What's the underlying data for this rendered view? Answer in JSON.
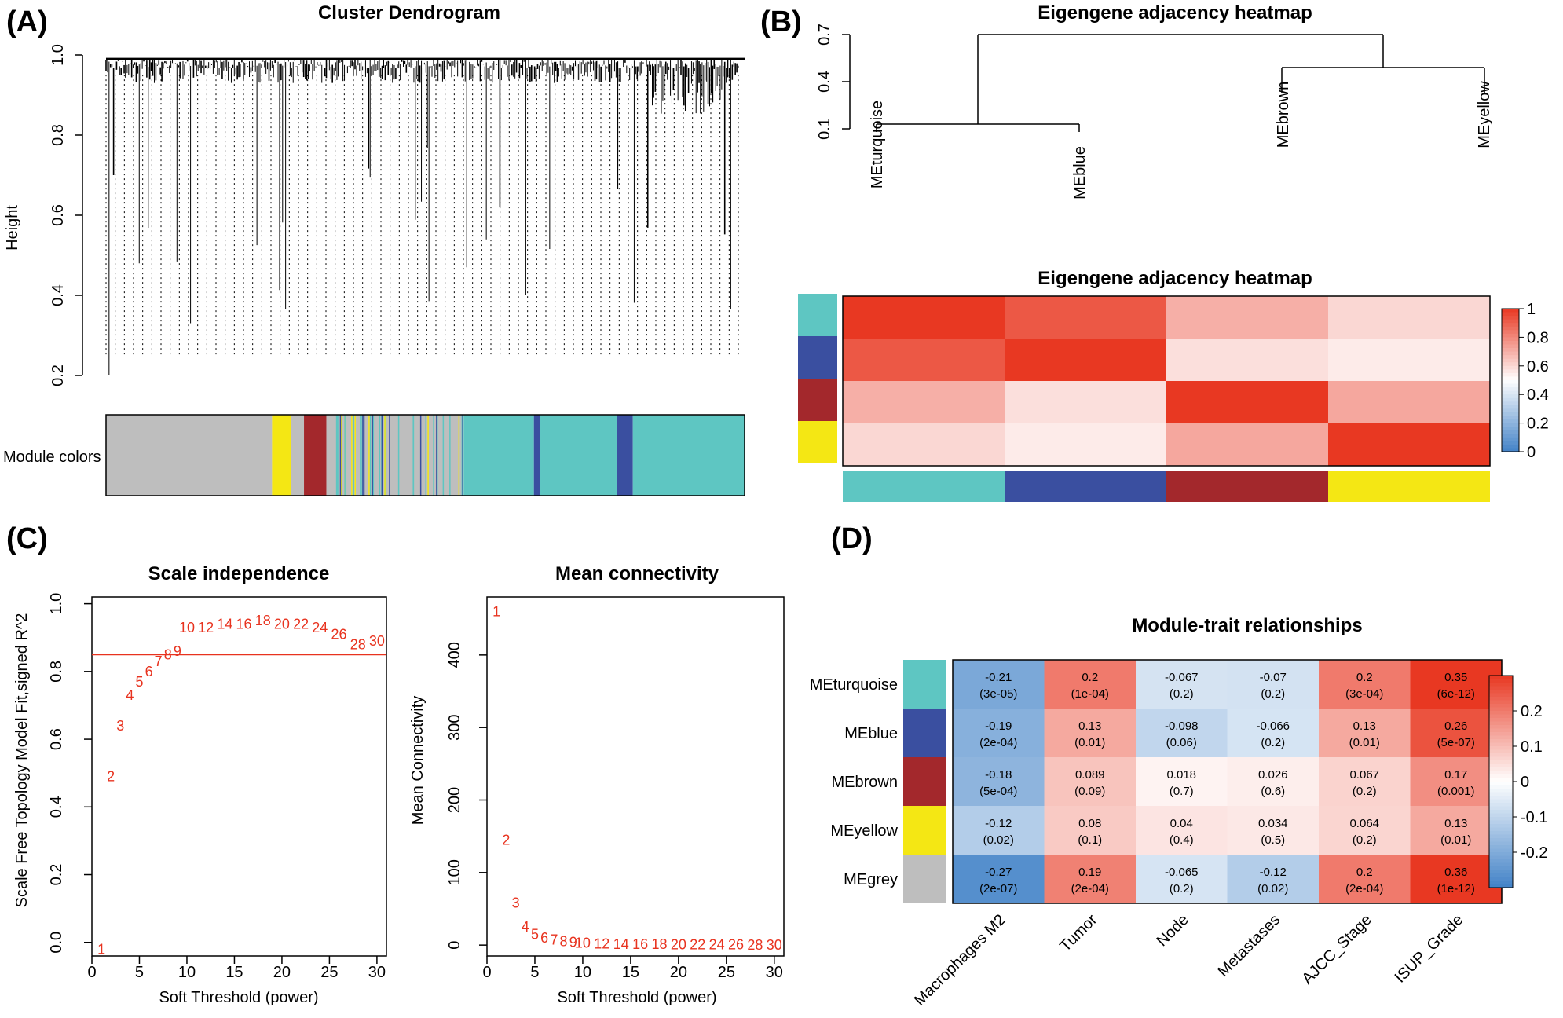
{
  "panels": {
    "a": "(A)",
    "b": "(B)",
    "c": "(C)",
    "d": "(D)"
  },
  "colors": {
    "turquoise": "#5ec6c2",
    "blue": "#3a4fa0",
    "brown": "#a3282c",
    "yellow": "#f4e714",
    "grey": "#bebebe",
    "red_line": "#e8331f",
    "point_text": "#e8331f"
  },
  "chart_data": [
    {
      "id": "A",
      "type": "dendrogram",
      "title": "Cluster Dendrogram",
      "ylabel": "Height",
      "ylim": [
        0.2,
        1.0
      ],
      "yticks": [
        "0.2",
        "0.4",
        "0.6",
        "0.8",
        "1.0"
      ],
      "module_colors_label": "Module colors",
      "module_color_order": [
        "grey",
        "yellow",
        "grey",
        "brown",
        "grey",
        "turquoise",
        "blue",
        "turquoise",
        "blue",
        "turquoise"
      ]
    },
    {
      "id": "B1",
      "type": "dendrogram",
      "title": "Eigengene adjacency heatmap",
      "ylim": [
        0.1,
        0.7
      ],
      "yticks": [
        "0.1",
        "0.4",
        "0.7"
      ],
      "leaves": [
        "MEturquoise",
        "MEblue",
        "MEbrown",
        "MEyellow"
      ]
    },
    {
      "id": "B2",
      "type": "heatmap",
      "title": "Eigengene adjacency heatmap",
      "rows": [
        "MEturquoise",
        "MEblue",
        "MEbrown",
        "MEyellow"
      ],
      "cols": [
        "MEturquoise",
        "MEblue",
        "MEbrown",
        "MEyellow"
      ],
      "row_colors": [
        "turquoise",
        "blue",
        "brown",
        "yellow"
      ],
      "values": [
        [
          1.0,
          0.92,
          0.7,
          0.6
        ],
        [
          0.92,
          1.0,
          0.58,
          0.55
        ],
        [
          0.7,
          0.58,
          1.0,
          0.72
        ],
        [
          0.6,
          0.55,
          0.72,
          1.0
        ]
      ],
      "scale_range": [
        0,
        1
      ],
      "scale_ticks": [
        "1",
        "0.8",
        "0.6",
        "0.4",
        "0.2",
        "0"
      ]
    },
    {
      "id": "C1",
      "type": "scatter",
      "title": "Scale independence",
      "xlabel": "Soft Threshold (power)",
      "ylabel": "Scale Free Topology Model Fit,signed R^2",
      "xlim": [
        0,
        31
      ],
      "ylim": [
        -0.04,
        1.02
      ],
      "xticks": [
        "0",
        "5",
        "10",
        "15",
        "20",
        "25",
        "30"
      ],
      "yticks": [
        "0.0",
        "0.2",
        "0.4",
        "0.6",
        "0.8",
        "1.0"
      ],
      "hline": 0.85,
      "points": [
        {
          "x": 1,
          "y": -0.02,
          "label": "1"
        },
        {
          "x": 2,
          "y": 0.49,
          "label": "2"
        },
        {
          "x": 3,
          "y": 0.64,
          "label": "3"
        },
        {
          "x": 4,
          "y": 0.73,
          "label": "4"
        },
        {
          "x": 5,
          "y": 0.77,
          "label": "5"
        },
        {
          "x": 6,
          "y": 0.8,
          "label": "6"
        },
        {
          "x": 7,
          "y": 0.83,
          "label": "7"
        },
        {
          "x": 8,
          "y": 0.85,
          "label": "8"
        },
        {
          "x": 9,
          "y": 0.86,
          "label": "9"
        },
        {
          "x": 10,
          "y": 0.93,
          "label": "10"
        },
        {
          "x": 12,
          "y": 0.93,
          "label": "12"
        },
        {
          "x": 14,
          "y": 0.94,
          "label": "14"
        },
        {
          "x": 16,
          "y": 0.94,
          "label": "16"
        },
        {
          "x": 18,
          "y": 0.95,
          "label": "18"
        },
        {
          "x": 20,
          "y": 0.94,
          "label": "20"
        },
        {
          "x": 22,
          "y": 0.94,
          "label": "22"
        },
        {
          "x": 24,
          "y": 0.93,
          "label": "24"
        },
        {
          "x": 26,
          "y": 0.91,
          "label": "26"
        },
        {
          "x": 28,
          "y": 0.88,
          "label": "28"
        },
        {
          "x": 30,
          "y": 0.89,
          "label": "30"
        }
      ]
    },
    {
      "id": "C2",
      "type": "scatter",
      "title": "Mean connectivity",
      "xlabel": "Soft Threshold (power)",
      "ylabel": "Mean Connectivity",
      "xlim": [
        0,
        31
      ],
      "ylim": [
        -15,
        480
      ],
      "xticks": [
        "0",
        "5",
        "10",
        "15",
        "20",
        "25",
        "30"
      ],
      "yticks": [
        "0",
        "100",
        "200",
        "300",
        "400"
      ],
      "points": [
        {
          "x": 1,
          "y": 460,
          "label": "1"
        },
        {
          "x": 2,
          "y": 145,
          "label": "2"
        },
        {
          "x": 3,
          "y": 58,
          "label": "3"
        },
        {
          "x": 4,
          "y": 25,
          "label": "4"
        },
        {
          "x": 5,
          "y": 15,
          "label": "5"
        },
        {
          "x": 6,
          "y": 10,
          "label": "6"
        },
        {
          "x": 7,
          "y": 7,
          "label": "7"
        },
        {
          "x": 8,
          "y": 5,
          "label": "8"
        },
        {
          "x": 9,
          "y": 4,
          "label": "9"
        },
        {
          "x": 10,
          "y": 3,
          "label": "10"
        },
        {
          "x": 12,
          "y": 2,
          "label": "12"
        },
        {
          "x": 14,
          "y": 1.5,
          "label": "14"
        },
        {
          "x": 16,
          "y": 1,
          "label": "16"
        },
        {
          "x": 18,
          "y": 1,
          "label": "18"
        },
        {
          "x": 20,
          "y": 0.8,
          "label": "20"
        },
        {
          "x": 22,
          "y": 0.7,
          "label": "22"
        },
        {
          "x": 24,
          "y": 0.6,
          "label": "24"
        },
        {
          "x": 26,
          "y": 0.5,
          "label": "26"
        },
        {
          "x": 28,
          "y": 0.4,
          "label": "28"
        },
        {
          "x": 30,
          "y": 0.3,
          "label": "30"
        }
      ]
    },
    {
      "id": "D",
      "type": "heatmap",
      "title": "Module-trait relationships",
      "rows": [
        "MEturquoise",
        "MEblue",
        "MEbrown",
        "MEyellow",
        "MEgrey"
      ],
      "row_colors": [
        "turquoise",
        "blue",
        "brown",
        "yellow",
        "grey"
      ],
      "cols": [
        "Macrophages M2",
        "Tumor",
        "Node",
        "Metastases",
        "AJCC_Stage",
        "ISUP_Grade"
      ],
      "values": [
        [
          -0.21,
          0.2,
          -0.067,
          -0.07,
          0.2,
          0.35
        ],
        [
          -0.19,
          0.13,
          -0.098,
          -0.066,
          0.13,
          0.26
        ],
        [
          -0.18,
          0.089,
          0.018,
          0.026,
          0.067,
          0.17
        ],
        [
          -0.12,
          0.08,
          0.04,
          0.034,
          0.064,
          0.13
        ],
        [
          -0.27,
          0.19,
          -0.065,
          -0.12,
          0.2,
          0.36
        ]
      ],
      "value_labels": [
        [
          "-0.21",
          "0.2",
          "-0.067",
          "-0.07",
          "0.2",
          "0.35"
        ],
        [
          "-0.19",
          "0.13",
          "-0.098",
          "-0.066",
          "0.13",
          "0.26"
        ],
        [
          "-0.18",
          "0.089",
          "0.018",
          "0.026",
          "0.067",
          "0.17"
        ],
        [
          "-0.12",
          "0.08",
          "0.04",
          "0.034",
          "0.064",
          "0.13"
        ],
        [
          "-0.27",
          "0.19",
          "-0.065",
          "-0.12",
          "0.2",
          "0.36"
        ]
      ],
      "p_labels": [
        [
          "(3e-05)",
          "(1e-04)",
          "(0.2)",
          "(0.2)",
          "(3e-04)",
          "(6e-12)"
        ],
        [
          "(2e-04)",
          "(0.01)",
          "(0.06)",
          "(0.2)",
          "(0.01)",
          "(5e-07)"
        ],
        [
          "(5e-04)",
          "(0.09)",
          "(0.7)",
          "(0.6)",
          "(0.2)",
          "(0.001)"
        ],
        [
          "(0.02)",
          "(0.1)",
          "(0.4)",
          "(0.5)",
          "(0.2)",
          "(0.01)"
        ],
        [
          "(2e-07)",
          "(2e-04)",
          "(0.2)",
          "(0.02)",
          "(2e-04)",
          "(1e-12)"
        ]
      ],
      "scale_range": [
        -0.3,
        0.3
      ],
      "scale_ticks": [
        "0.2",
        "0.1",
        "0",
        "-0.1",
        "-0.2"
      ]
    }
  ]
}
